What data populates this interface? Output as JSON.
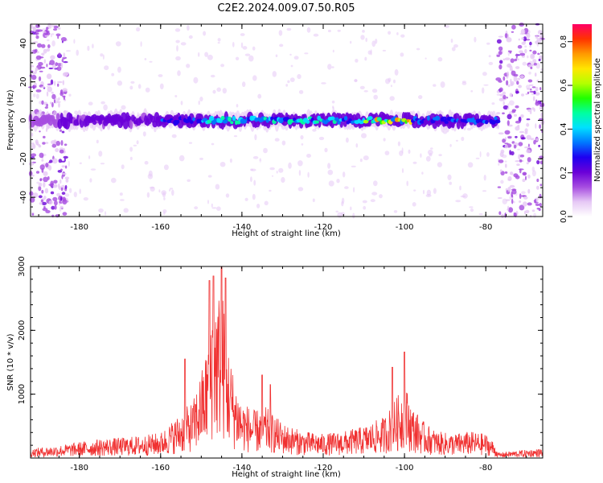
{
  "title": "C2E2.2024.009.07.50.R05",
  "chart_data": [
    {
      "type": "heatmap",
      "xlabel": "Height of straight line (km)",
      "ylabel": "Frequency (Hz)",
      "xlim": [
        -192,
        -66
      ],
      "ylim": [
        -50,
        50
      ],
      "xticks": [
        -180,
        -160,
        -140,
        -120,
        -100,
        -80
      ],
      "yticks": [
        -40,
        -20,
        0,
        20,
        40
      ],
      "colorbar": {
        "label": "Normalized spectral amplitude",
        "range": [
          0.0,
          0.88
        ],
        "ticks": [
          "0.0",
          "0.2",
          "0.4",
          "0.6",
          "0.8"
        ],
        "colormap": [
          "#ffffff",
          "#e6c8f5",
          "#a64ce0",
          "#6a00d8",
          "#1e00f0",
          "#0078ff",
          "#00e0ff",
          "#00ffa0",
          "#20ff00",
          "#b4ff00",
          "#ffe600",
          "#ff9900",
          "#ff3300",
          "#ff0066"
        ]
      },
      "band": {
        "center_frequency": 0,
        "half_width": 4,
        "x_start": -192,
        "x_end": -77,
        "gap_x": [
          -77,
          -76
        ]
      },
      "broadband_regions": [
        {
          "x": [
            -192,
            -183
          ]
        },
        {
          "x": [
            -77,
            -66
          ]
        }
      ]
    },
    {
      "type": "line",
      "xlabel": "Height of straight line (km)",
      "ylabel": "SNR (10 * v/v)",
      "xlim": [
        -192,
        -66
      ],
      "ylim": [
        0,
        3000
      ],
      "xticks": [
        -180,
        -160,
        -140,
        -120,
        -100,
        -80
      ],
      "yticks": [
        1000,
        2000,
        3000
      ],
      "series_color": "#f03030",
      "envelope": {
        "x": [
          -192,
          -185,
          -180,
          -175,
          -170,
          -165,
          -160,
          -156,
          -152,
          -149,
          -147,
          -146,
          -145,
          -144,
          -142,
          -140,
          -137,
          -134,
          -130,
          -125,
          -120,
          -115,
          -110,
          -105,
          -101,
          -100,
          -98,
          -95,
          -92,
          -88,
          -84,
          -80,
          -78,
          -77,
          -75,
          -70,
          -66
        ],
        "y": [
          150,
          200,
          250,
          300,
          320,
          350,
          400,
          650,
          900,
          1600,
          2700,
          2500,
          2900,
          2000,
          1300,
          900,
          750,
          800,
          550,
          420,
          380,
          420,
          500,
          650,
          1050,
          1200,
          800,
          550,
          420,
          380,
          420,
          380,
          250,
          80,
          100,
          130,
          150
        ]
      },
      "peaks": [
        {
          "x": -154,
          "y": 1550
        },
        {
          "x": -148,
          "y": 2780
        },
        {
          "x": -147,
          "y": 2850
        },
        {
          "x": -145,
          "y": 3000
        },
        {
          "x": -144,
          "y": 2820
        },
        {
          "x": -135,
          "y": 1300
        },
        {
          "x": -133,
          "y": 1150
        },
        {
          "x": -100,
          "y": 1660
        },
        {
          "x": -103,
          "y": 1420
        }
      ]
    }
  ]
}
